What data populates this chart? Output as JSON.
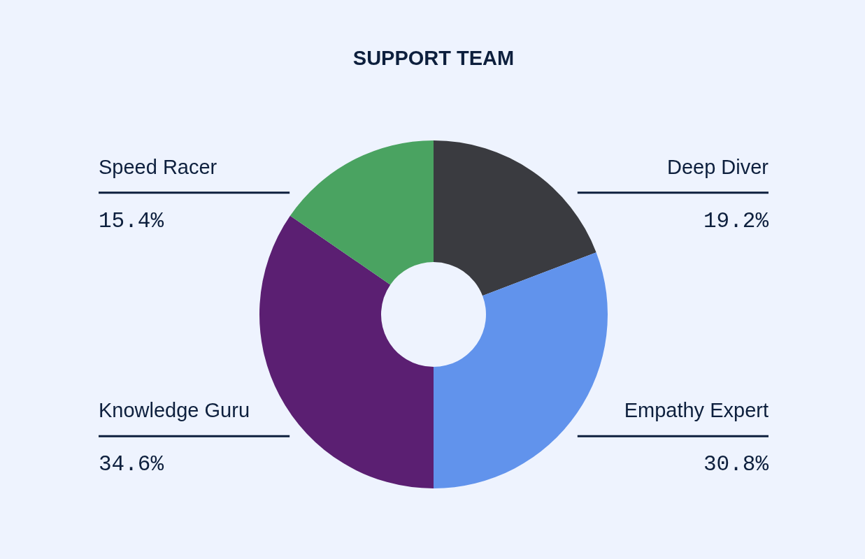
{
  "chart_data": {
    "type": "donut",
    "title": "SUPPORT TEAM",
    "categories": [
      "Deep Diver",
      "Empathy Expert",
      "Knowledge Guru",
      "Speed Racer"
    ],
    "values": [
      19.2,
      30.8,
      34.6,
      15.4
    ],
    "colors": [
      "#3a3b40",
      "#6193ec",
      "#5b1f72",
      "#4aa361"
    ],
    "value_labels": [
      "19.2%",
      "30.8%",
      "34.6%",
      "15.4%"
    ]
  }
}
